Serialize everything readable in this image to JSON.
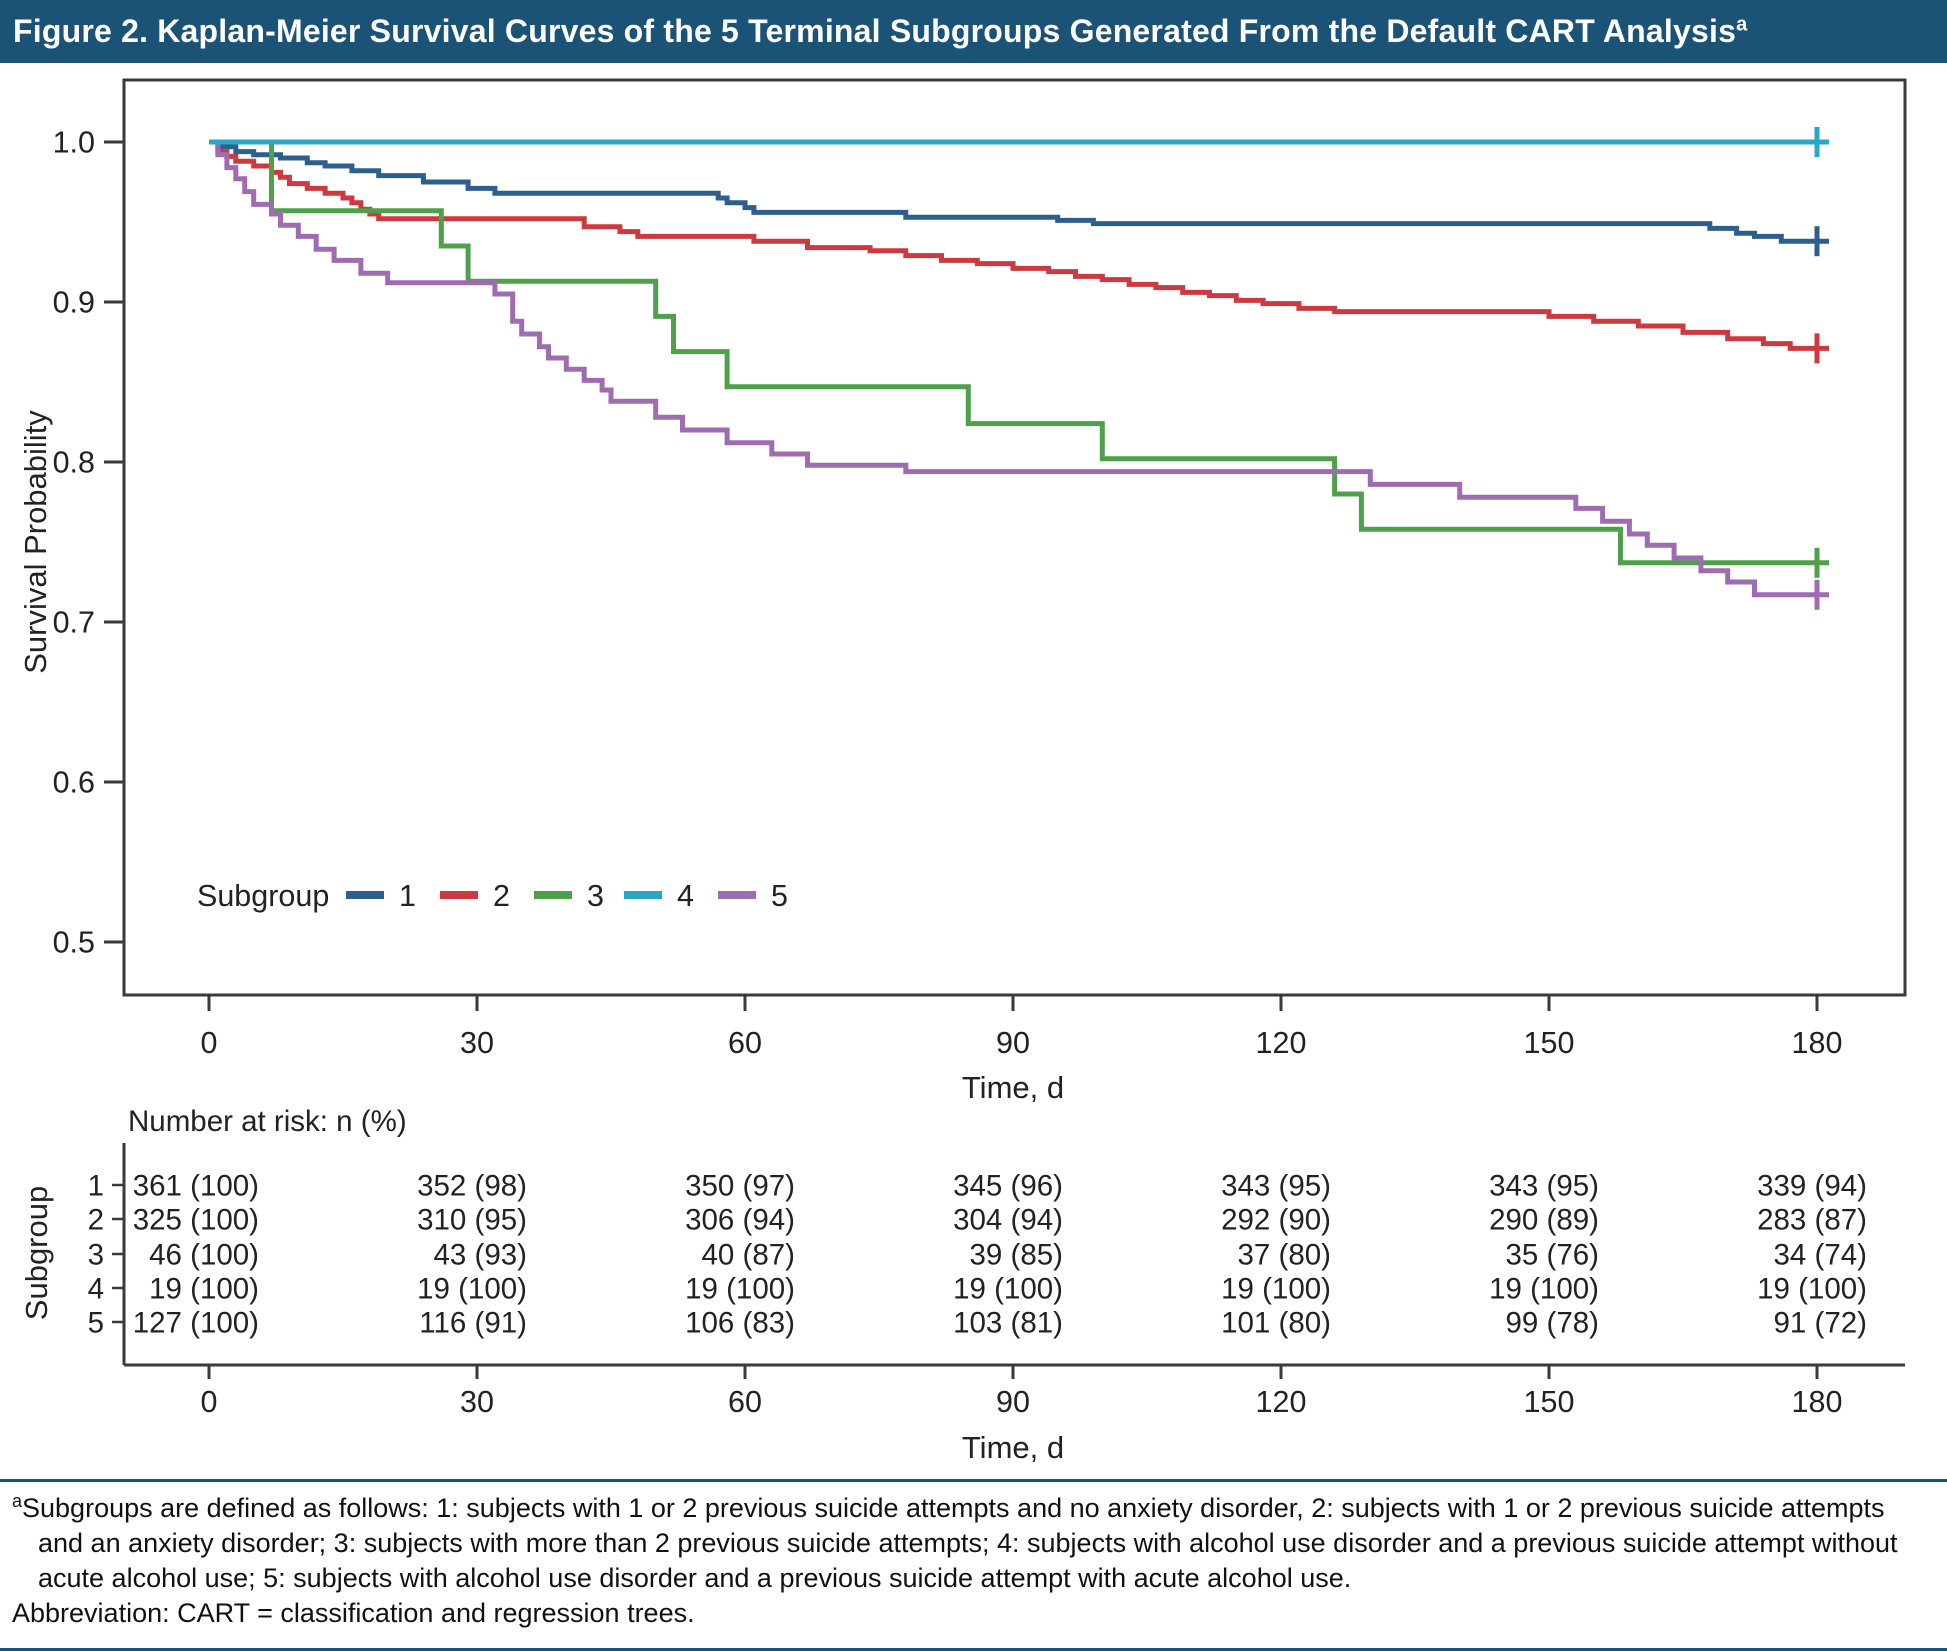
{
  "title_bar": {
    "text": "Figure 2. Kaplan-Meier Survival Curves of the 5 Terminal Subgroups Generated From the Default CART Analysis",
    "superscript": "a",
    "background": "#1b5377",
    "text_color": "#ffffff"
  },
  "chart_data": {
    "type": "line",
    "subtype": "kaplan-meier-step-curves",
    "title": "Kaplan-Meier Survival Curves of the 5 Terminal Subgroups Generated From the Default CART Analysis",
    "xlabel": "Time, d",
    "ylabel": "Survival Probability",
    "xlim": [
      0,
      190
    ],
    "ylim": [
      0.46,
      1.04
    ],
    "xticks": [
      0,
      30,
      60,
      90,
      120,
      150,
      180
    ],
    "yticks": [
      1.0,
      0.9,
      0.8,
      0.7,
      0.6,
      0.5
    ],
    "grid": false,
    "legend": {
      "title": "Subgroup",
      "position": "inside-lower-left"
    },
    "axis_color": "#3a3a3a",
    "text_color": "#222222",
    "censor_marker": "plus-at-180",
    "series": [
      {
        "name": "1",
        "color": "#2d5f8d",
        "points": [
          [
            0,
            1.0
          ],
          [
            1,
            0.997
          ],
          [
            3,
            0.994
          ],
          [
            5,
            0.992
          ],
          [
            8,
            0.99
          ],
          [
            11,
            0.987
          ],
          [
            13,
            0.985
          ],
          [
            16,
            0.982
          ],
          [
            19,
            0.979
          ],
          [
            24,
            0.975
          ],
          [
            29,
            0.971
          ],
          [
            32,
            0.968
          ],
          [
            56,
            0.968
          ],
          [
            57,
            0.965
          ],
          [
            58,
            0.962
          ],
          [
            60,
            0.959
          ],
          [
            61,
            0.956
          ],
          [
            76,
            0.956
          ],
          [
            78,
            0.953
          ],
          [
            95,
            0.951
          ],
          [
            99,
            0.949
          ],
          [
            166,
            0.949
          ],
          [
            168,
            0.946
          ],
          [
            171,
            0.943
          ],
          [
            173,
            0.941
          ],
          [
            176,
            0.938
          ],
          [
            180,
            0.938
          ]
        ]
      },
      {
        "name": "2",
        "color": "#cc3a3f",
        "points": [
          [
            0,
            1.0
          ],
          [
            1,
            0.994
          ],
          [
            2,
            0.991
          ],
          [
            3,
            0.988
          ],
          [
            5,
            0.985
          ],
          [
            7,
            0.981
          ],
          [
            8,
            0.978
          ],
          [
            9,
            0.974
          ],
          [
            11,
            0.971
          ],
          [
            13,
            0.968
          ],
          [
            15,
            0.965
          ],
          [
            16,
            0.962
          ],
          [
            17,
            0.958
          ],
          [
            18,
            0.955
          ],
          [
            19,
            0.952
          ],
          [
            42,
            0.947
          ],
          [
            46,
            0.944
          ],
          [
            48,
            0.941
          ],
          [
            61,
            0.938
          ],
          [
            67,
            0.934
          ],
          [
            74,
            0.932
          ],
          [
            78,
            0.929
          ],
          [
            82,
            0.926
          ],
          [
            86,
            0.924
          ],
          [
            90,
            0.921
          ],
          [
            94,
            0.919
          ],
          [
            97,
            0.916
          ],
          [
            100,
            0.914
          ],
          [
            103,
            0.911
          ],
          [
            106,
            0.909
          ],
          [
            109,
            0.906
          ],
          [
            112,
            0.904
          ],
          [
            115,
            0.901
          ],
          [
            118,
            0.899
          ],
          [
            122,
            0.896
          ],
          [
            126,
            0.894
          ],
          [
            150,
            0.891
          ],
          [
            155,
            0.888
          ],
          [
            160,
            0.885
          ],
          [
            165,
            0.881
          ],
          [
            170,
            0.877
          ],
          [
            174,
            0.874
          ],
          [
            177,
            0.871
          ],
          [
            180,
            0.871
          ]
        ]
      },
      {
        "name": "3",
        "color": "#4fa04a",
        "points": [
          [
            0,
            1.0
          ],
          [
            7,
            0.957
          ],
          [
            26,
            0.935
          ],
          [
            29,
            0.913
          ],
          [
            50,
            0.891
          ],
          [
            52,
            0.869
          ],
          [
            58,
            0.847
          ],
          [
            85,
            0.824
          ],
          [
            100,
            0.802
          ],
          [
            126,
            0.78
          ],
          [
            129,
            0.758
          ],
          [
            158,
            0.737
          ],
          [
            180,
            0.737
          ]
        ]
      },
      {
        "name": "4",
        "color": "#28a7c9",
        "points": [
          [
            0,
            1.0
          ],
          [
            180,
            1.0
          ]
        ]
      },
      {
        "name": "5",
        "color": "#9f6cb1",
        "points": [
          [
            0,
            1.0
          ],
          [
            1,
            0.992
          ],
          [
            2,
            0.984
          ],
          [
            3,
            0.977
          ],
          [
            4,
            0.969
          ],
          [
            5,
            0.961
          ],
          [
            7,
            0.955
          ],
          [
            8,
            0.948
          ],
          [
            10,
            0.941
          ],
          [
            12,
            0.933
          ],
          [
            14,
            0.926
          ],
          [
            17,
            0.918
          ],
          [
            20,
            0.912
          ],
          [
            32,
            0.905
          ],
          [
            34,
            0.888
          ],
          [
            35,
            0.88
          ],
          [
            37,
            0.872
          ],
          [
            38,
            0.865
          ],
          [
            40,
            0.858
          ],
          [
            42,
            0.851
          ],
          [
            44,
            0.845
          ],
          [
            45,
            0.838
          ],
          [
            50,
            0.828
          ],
          [
            53,
            0.82
          ],
          [
            58,
            0.812
          ],
          [
            63,
            0.805
          ],
          [
            67,
            0.798
          ],
          [
            78,
            0.794
          ],
          [
            130,
            0.786
          ],
          [
            140,
            0.778
          ],
          [
            153,
            0.771
          ],
          [
            156,
            0.763
          ],
          [
            159,
            0.755
          ],
          [
            161,
            0.748
          ],
          [
            164,
            0.74
          ],
          [
            167,
            0.732
          ],
          [
            170,
            0.725
          ],
          [
            173,
            0.717
          ],
          [
            180,
            0.717
          ]
        ]
      }
    ]
  },
  "risk_table": {
    "header": "Number at risk: n (%)",
    "ylabel": "Subgroup",
    "xlabel": "Time, d",
    "times": [
      0,
      30,
      60,
      90,
      120,
      150,
      180
    ],
    "rows": [
      {
        "label": "1",
        "values": [
          "361 (100)",
          "352 (98)",
          "350 (97)",
          "345 (96)",
          "343 (95)",
          "343 (95)",
          "339 (94)"
        ]
      },
      {
        "label": "2",
        "values": [
          "325 (100)",
          "310 (95)",
          "306 (94)",
          "304 (94)",
          "292 (90)",
          "290 (89)",
          "283 (87)"
        ]
      },
      {
        "label": "3",
        "values": [
          "46 (100)",
          "43 (93)",
          "40 (87)",
          "39 (85)",
          "37 (80)",
          "35 (76)",
          "34 (74)"
        ]
      },
      {
        "label": "4",
        "values": [
          "19 (100)",
          "19 (100)",
          "19 (100)",
          "19 (100)",
          "19 (100)",
          "19 (100)",
          "19 (100)"
        ]
      },
      {
        "label": "5",
        "values": [
          "127 (100)",
          "116 (91)",
          "106 (83)",
          "103 (81)",
          "101 (80)",
          "99 (78)",
          "91 (72)"
        ]
      }
    ]
  },
  "footnote": {
    "superscript": "a",
    "text": "Subgroups are defined as follows: 1: subjects with 1 or 2 previous suicide attempts and no anxiety disorder, 2: subjects with 1 or 2 previous suicide attempts and an anxiety disorder; 3: subjects with more than 2 previous suicide attempts; 4: subjects with alcohol use disorder and a previous suicide attempt without acute alcohol use; 5: subjects with alcohol use disorder and a previous suicide attempt with acute alcohol use.",
    "abbreviation": "Abbreviation: CART = classification and regression trees."
  }
}
